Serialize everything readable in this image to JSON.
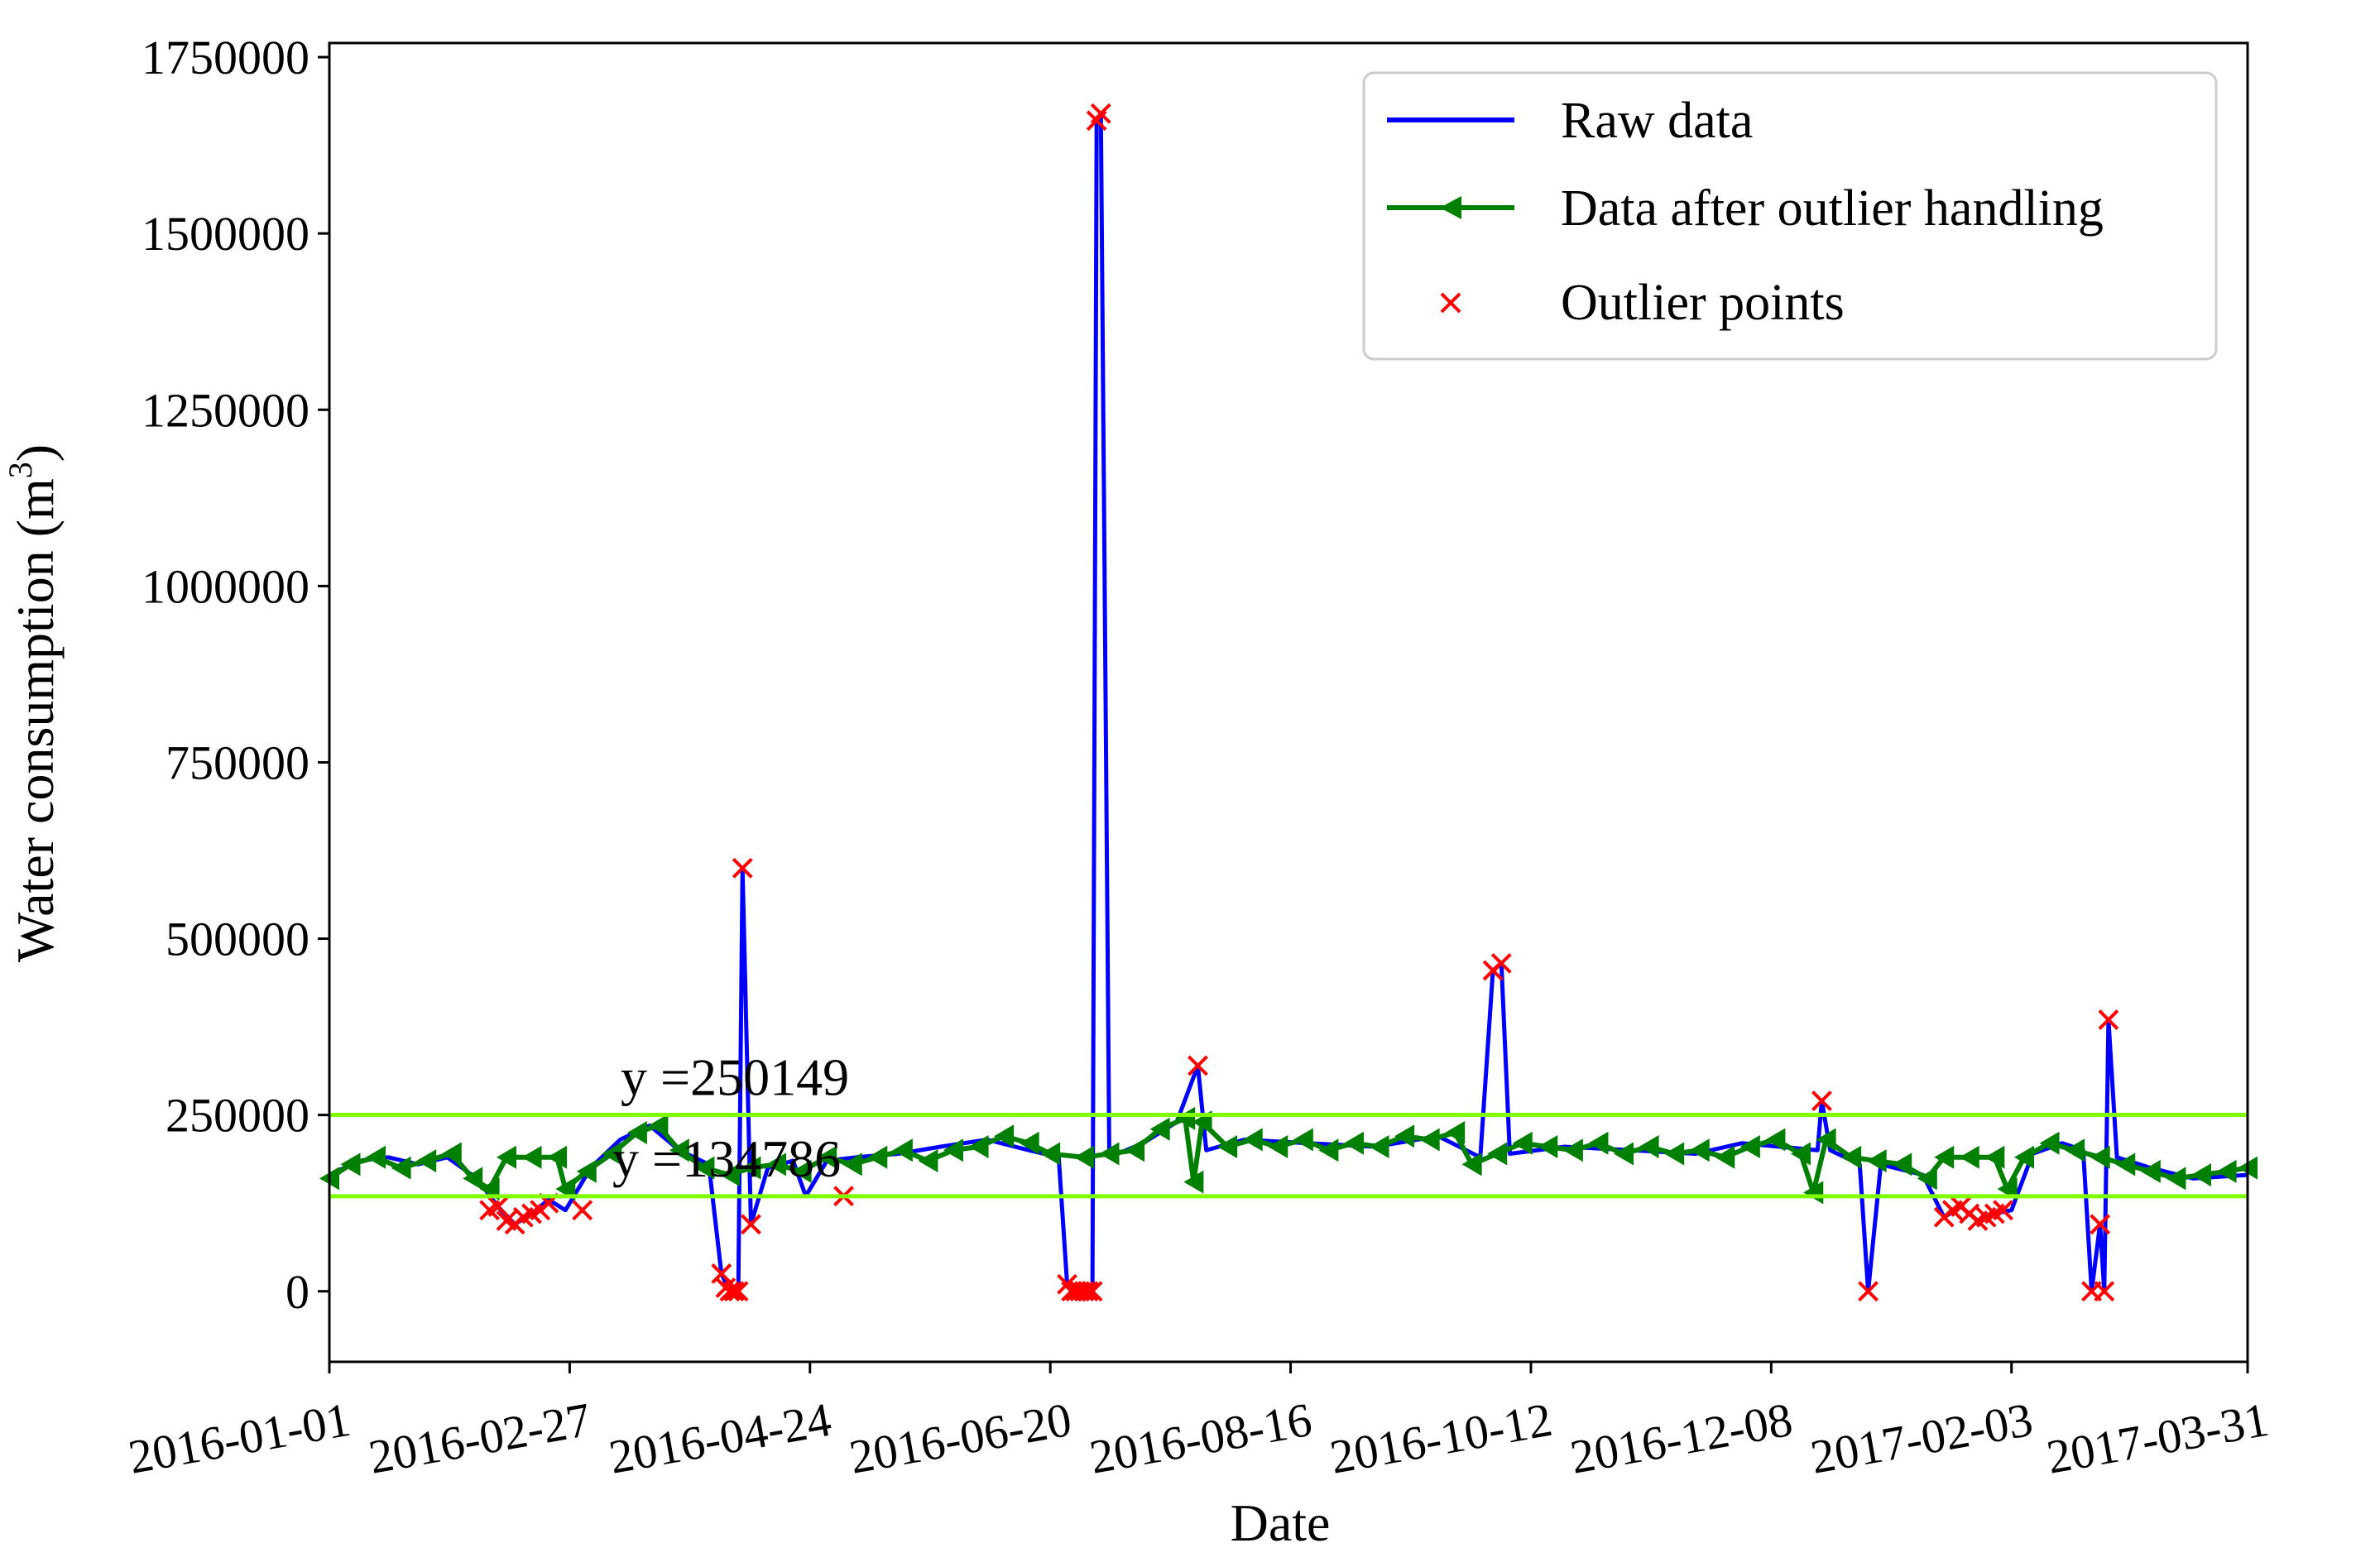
{
  "chart_data": {
    "type": "line",
    "xlabel": "Date",
    "ylabel": "Water consumption (m",
    "ylabel_sup": "3",
    "ylabel_close": ")",
    "x_ticks": [
      "2016-01-01",
      "2016-02-27",
      "2016-04-24",
      "2016-06-20",
      "2016-08-16",
      "2016-10-12",
      "2016-12-08",
      "2017-02-03",
      "2017-03-31"
    ],
    "xlim": [
      "2016-01-01",
      "2017-03-31"
    ],
    "y_ticks": [
      0,
      250000,
      500000,
      750000,
      1000000,
      1250000,
      1500000,
      1750000
    ],
    "ylim": [
      -100000,
      1770000
    ],
    "grid": false,
    "legend": {
      "placement": "top-right",
      "entries": [
        "Raw data",
        "Data after outlier handling",
        "Outlier points"
      ]
    },
    "threshold_lines": [
      {
        "y": 250149,
        "label": "y =250149",
        "color": "#80ff00"
      },
      {
        "y": 134786,
        "label": "y =134786",
        "color": "#80ff00"
      }
    ],
    "colors": {
      "raw": "#0000ff",
      "handled": "#008000",
      "outlier": "#ff0000"
    },
    "series": [
      {
        "name": "Raw data",
        "points": [
          [
            "2016-01-01",
            165000
          ],
          [
            "2016-01-08",
            185000
          ],
          [
            "2016-01-15",
            190000
          ],
          [
            "2016-01-22",
            180000
          ],
          [
            "2016-01-29",
            190000
          ],
          [
            "2016-02-05",
            160000
          ],
          [
            "2016-02-10",
            120000
          ],
          [
            "2016-02-14",
            95000
          ],
          [
            "2016-02-18",
            110000
          ],
          [
            "2016-02-22",
            130000
          ],
          [
            "2016-02-26",
            115000
          ],
          [
            "2016-03-03",
            175000
          ],
          [
            "2016-03-10",
            215000
          ],
          [
            "2016-03-17",
            235000
          ],
          [
            "2016-03-24",
            200000
          ],
          [
            "2016-03-31",
            180000
          ],
          [
            "2016-04-03",
            25000
          ],
          [
            "2016-04-05",
            0
          ],
          [
            "2016-04-07",
            0
          ],
          [
            "2016-04-08",
            600000
          ],
          [
            "2016-04-10",
            95000
          ],
          [
            "2016-04-14",
            175000
          ],
          [
            "2016-04-20",
            185000
          ],
          [
            "2016-04-23",
            135000
          ],
          [
            "2016-04-28",
            185000
          ],
          [
            "2016-05-05",
            190000
          ],
          [
            "2016-05-15",
            195000
          ],
          [
            "2016-05-25",
            205000
          ],
          [
            "2016-06-05",
            215000
          ],
          [
            "2016-06-15",
            200000
          ],
          [
            "2016-06-22",
            190000
          ],
          [
            "2016-06-24",
            10000
          ],
          [
            "2016-06-26",
            0
          ],
          [
            "2016-06-28",
            0
          ],
          [
            "2016-06-30",
            0
          ],
          [
            "2016-07-01",
            1660000
          ],
          [
            "2016-07-02",
            1670000
          ],
          [
            "2016-07-04",
            190000
          ],
          [
            "2016-07-12",
            210000
          ],
          [
            "2016-07-20",
            240000
          ],
          [
            "2016-07-25",
            320000
          ],
          [
            "2016-07-27",
            200000
          ],
          [
            "2016-08-05",
            215000
          ],
          [
            "2016-08-20",
            210000
          ],
          [
            "2016-09-05",
            205000
          ],
          [
            "2016-09-20",
            220000
          ],
          [
            "2016-09-30",
            190000
          ],
          [
            "2016-10-03",
            455000
          ],
          [
            "2016-10-05",
            465000
          ],
          [
            "2016-10-07",
            195000
          ],
          [
            "2016-10-20",
            205000
          ],
          [
            "2016-11-05",
            200000
          ],
          [
            "2016-11-20",
            195000
          ],
          [
            "2016-12-01",
            210000
          ],
          [
            "2016-12-10",
            205000
          ],
          [
            "2016-12-19",
            200000
          ],
          [
            "2016-12-20",
            270000
          ],
          [
            "2016-12-22",
            200000
          ],
          [
            "2016-12-29",
            180000
          ],
          [
            "2016-12-31",
            0
          ],
          [
            "2017-01-03",
            180000
          ],
          [
            "2017-01-13",
            165000
          ],
          [
            "2017-01-18",
            105000
          ],
          [
            "2017-01-22",
            120000
          ],
          [
            "2017-01-26",
            100000
          ],
          [
            "2017-01-30",
            110000
          ],
          [
            "2017-02-03",
            115000
          ],
          [
            "2017-02-08",
            195000
          ],
          [
            "2017-02-15",
            210000
          ],
          [
            "2017-02-20",
            200000
          ],
          [
            "2017-02-22",
            0
          ],
          [
            "2017-02-24",
            95000
          ],
          [
            "2017-02-25",
            0
          ],
          [
            "2017-02-26",
            385000
          ],
          [
            "2017-02-28",
            190000
          ],
          [
            "2017-03-08",
            175000
          ],
          [
            "2017-03-18",
            160000
          ],
          [
            "2017-03-31",
            165000
          ]
        ]
      },
      {
        "name": "Data after outlier handling",
        "points": [
          [
            "2016-01-01",
            160000
          ],
          [
            "2016-01-06",
            180000
          ],
          [
            "2016-01-12",
            190000
          ],
          [
            "2016-01-18",
            175000
          ],
          [
            "2016-01-24",
            185000
          ],
          [
            "2016-01-30",
            195000
          ],
          [
            "2016-02-04",
            160000
          ],
          [
            "2016-02-08",
            145000
          ],
          [
            "2016-02-12",
            190000
          ],
          [
            "2016-02-18",
            190000
          ],
          [
            "2016-02-24",
            190000
          ],
          [
            "2016-02-26",
            145000
          ],
          [
            "2016-03-02",
            170000
          ],
          [
            "2016-03-08",
            195000
          ],
          [
            "2016-03-14",
            225000
          ],
          [
            "2016-03-19",
            235000
          ],
          [
            "2016-03-24",
            200000
          ],
          [
            "2016-03-30",
            175000
          ],
          [
            "2016-04-05",
            165000
          ],
          [
            "2016-04-10",
            175000
          ],
          [
            "2016-04-16",
            180000
          ],
          [
            "2016-04-22",
            170000
          ],
          [
            "2016-04-28",
            190000
          ],
          [
            "2016-05-04",
            180000
          ],
          [
            "2016-05-10",
            190000
          ],
          [
            "2016-05-16",
            200000
          ],
          [
            "2016-05-22",
            185000
          ],
          [
            "2016-05-28",
            200000
          ],
          [
            "2016-06-03",
            205000
          ],
          [
            "2016-06-09",
            220000
          ],
          [
            "2016-06-15",
            210000
          ],
          [
            "2016-06-20",
            195000
          ],
          [
            "2016-06-28",
            190000
          ],
          [
            "2016-07-04",
            195000
          ],
          [
            "2016-07-10",
            200000
          ],
          [
            "2016-07-16",
            230000
          ],
          [
            "2016-07-22",
            245000
          ],
          [
            "2016-07-24",
            155000
          ],
          [
            "2016-07-26",
            240000
          ],
          [
            "2016-08-01",
            205000
          ],
          [
            "2016-08-07",
            215000
          ],
          [
            "2016-08-13",
            205000
          ],
          [
            "2016-08-19",
            215000
          ],
          [
            "2016-08-25",
            200000
          ],
          [
            "2016-08-31",
            210000
          ],
          [
            "2016-09-06",
            205000
          ],
          [
            "2016-09-12",
            220000
          ],
          [
            "2016-09-18",
            215000
          ],
          [
            "2016-09-24",
            225000
          ],
          [
            "2016-09-28",
            180000
          ],
          [
            "2016-10-04",
            195000
          ],
          [
            "2016-10-10",
            210000
          ],
          [
            "2016-10-16",
            205000
          ],
          [
            "2016-10-22",
            200000
          ],
          [
            "2016-10-28",
            210000
          ],
          [
            "2016-11-03",
            195000
          ],
          [
            "2016-11-09",
            205000
          ],
          [
            "2016-11-15",
            195000
          ],
          [
            "2016-11-21",
            200000
          ],
          [
            "2016-11-27",
            190000
          ],
          [
            "2016-12-03",
            205000
          ],
          [
            "2016-12-09",
            215000
          ],
          [
            "2016-12-15",
            195000
          ],
          [
            "2016-12-18",
            140000
          ],
          [
            "2016-12-21",
            215000
          ],
          [
            "2016-12-27",
            190000
          ],
          [
            "2017-01-02",
            185000
          ],
          [
            "2017-01-08",
            180000
          ],
          [
            "2017-01-14",
            160000
          ],
          [
            "2017-01-18",
            190000
          ],
          [
            "2017-01-24",
            190000
          ],
          [
            "2017-01-30",
            190000
          ],
          [
            "2017-02-02",
            145000
          ],
          [
            "2017-02-06",
            190000
          ],
          [
            "2017-02-12",
            210000
          ],
          [
            "2017-02-18",
            200000
          ],
          [
            "2017-02-24",
            190000
          ],
          [
            "2017-03-02",
            180000
          ],
          [
            "2017-03-08",
            170000
          ],
          [
            "2017-03-14",
            160000
          ],
          [
            "2017-03-20",
            165000
          ],
          [
            "2017-03-26",
            170000
          ],
          [
            "2017-03-31",
            175000
          ]
        ]
      },
      {
        "name": "Outlier points",
        "points": [
          [
            "2016-02-08",
            115000
          ],
          [
            "2016-02-10",
            120000
          ],
          [
            "2016-02-12",
            100000
          ],
          [
            "2016-02-14",
            95000
          ],
          [
            "2016-02-16",
            105000
          ],
          [
            "2016-02-18",
            110000
          ],
          [
            "2016-02-20",
            115000
          ],
          [
            "2016-02-22",
            125000
          ],
          [
            "2016-03-01",
            115000
          ],
          [
            "2016-04-03",
            25000
          ],
          [
            "2016-04-04",
            5000
          ],
          [
            "2016-04-05",
            0
          ],
          [
            "2016-04-06",
            0
          ],
          [
            "2016-04-07",
            0
          ],
          [
            "2016-04-08",
            600000
          ],
          [
            "2016-04-10",
            95000
          ],
          [
            "2016-05-02",
            135000
          ],
          [
            "2016-06-24",
            10000
          ],
          [
            "2016-06-25",
            0
          ],
          [
            "2016-06-26",
            0
          ],
          [
            "2016-06-27",
            0
          ],
          [
            "2016-06-28",
            0
          ],
          [
            "2016-06-29",
            0
          ],
          [
            "2016-06-30",
            0
          ],
          [
            "2016-07-01",
            1660000
          ],
          [
            "2016-07-02",
            1670000
          ],
          [
            "2016-07-25",
            320000
          ],
          [
            "2016-10-03",
            455000
          ],
          [
            "2016-10-05",
            465000
          ],
          [
            "2016-12-20",
            270000
          ],
          [
            "2016-12-31",
            0
          ],
          [
            "2017-01-18",
            105000
          ],
          [
            "2017-01-20",
            115000
          ],
          [
            "2017-01-22",
            120000
          ],
          [
            "2017-01-24",
            110000
          ],
          [
            "2017-01-26",
            100000
          ],
          [
            "2017-01-28",
            105000
          ],
          [
            "2017-01-30",
            110000
          ],
          [
            "2017-02-01",
            115000
          ],
          [
            "2017-02-22",
            0
          ],
          [
            "2017-02-24",
            95000
          ],
          [
            "2017-02-25",
            0
          ],
          [
            "2017-02-26",
            385000
          ]
        ]
      }
    ]
  }
}
